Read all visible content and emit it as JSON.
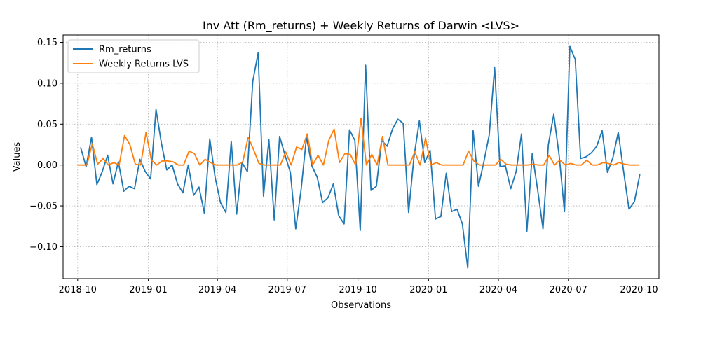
{
  "chart_data": {
    "type": "line",
    "title": "Inv Att (Rm_returns) + Weekly Returns of Darwin <LVS>",
    "xlabel": "Observations",
    "ylabel": "Values",
    "xlim": [
      "2018-09-12",
      "2020-10-27"
    ],
    "ylim": [
      -0.139,
      0.159
    ],
    "x_ticks": [
      {
        "date": "2018-10-01",
        "label": "2018-10"
      },
      {
        "date": "2019-01-01",
        "label": "2019-01"
      },
      {
        "date": "2019-04-01",
        "label": "2019-04"
      },
      {
        "date": "2019-07-01",
        "label": "2019-07"
      },
      {
        "date": "2019-10-01",
        "label": "2019-10"
      },
      {
        "date": "2020-01-01",
        "label": "2020-01"
      },
      {
        "date": "2020-04-01",
        "label": "2020-04"
      },
      {
        "date": "2020-07-01",
        "label": "2020-07"
      },
      {
        "date": "2020-10-01",
        "label": "2020-10"
      }
    ],
    "y_ticks": [
      {
        "value": -0.1,
        "label": "−0.10"
      },
      {
        "value": -0.05,
        "label": "−0.05"
      },
      {
        "value": 0.0,
        "label": "0.00"
      },
      {
        "value": 0.05,
        "label": "0.05"
      },
      {
        "value": 0.1,
        "label": "0.10"
      },
      {
        "value": 0.15,
        "label": "0.15"
      }
    ],
    "grid": true,
    "legend_position": "top-left",
    "series": [
      {
        "name": "Rm_returns",
        "color": "#1f77b4",
        "points": [
          [
            "2018-10-05",
            0.021
          ],
          [
            "2018-10-12",
            -0.002
          ],
          [
            "2018-10-19",
            0.034
          ],
          [
            "2018-10-26",
            -0.024
          ],
          [
            "2018-11-02",
            -0.008
          ],
          [
            "2018-11-09",
            0.012
          ],
          [
            "2018-11-16",
            -0.023
          ],
          [
            "2018-11-23",
            0.004
          ],
          [
            "2018-11-30",
            -0.032
          ],
          [
            "2018-12-07",
            -0.026
          ],
          [
            "2018-12-14",
            -0.029
          ],
          [
            "2018-12-21",
            0.007
          ],
          [
            "2018-12-28",
            -0.008
          ],
          [
            "2019-01-04",
            -0.017
          ],
          [
            "2019-01-11",
            0.068
          ],
          [
            "2019-01-18",
            0.027
          ],
          [
            "2019-01-25",
            -0.006
          ],
          [
            "2019-02-01",
            0.0
          ],
          [
            "2019-02-08",
            -0.023
          ],
          [
            "2019-02-15",
            -0.034
          ],
          [
            "2019-02-22",
            0.0
          ],
          [
            "2019-03-01",
            -0.037
          ],
          [
            "2019-03-08",
            -0.027
          ],
          [
            "2019-03-15",
            -0.059
          ],
          [
            "2019-03-22",
            0.032
          ],
          [
            "2019-03-29",
            -0.015
          ],
          [
            "2019-04-05",
            -0.046
          ],
          [
            "2019-04-12",
            -0.058
          ],
          [
            "2019-04-19",
            0.029
          ],
          [
            "2019-04-26",
            -0.06
          ],
          [
            "2019-05-03",
            0.003
          ],
          [
            "2019-05-10",
            -0.008
          ],
          [
            "2019-05-17",
            0.102
          ],
          [
            "2019-05-24",
            0.137
          ],
          [
            "2019-05-31",
            -0.038
          ],
          [
            "2019-06-07",
            0.031
          ],
          [
            "2019-06-14",
            -0.067
          ],
          [
            "2019-06-21",
            0.035
          ],
          [
            "2019-06-28",
            0.012
          ],
          [
            "2019-07-05",
            -0.009
          ],
          [
            "2019-07-12",
            -0.078
          ],
          [
            "2019-07-19",
            -0.03
          ],
          [
            "2019-07-26",
            0.034
          ],
          [
            "2019-08-02",
            -0.001
          ],
          [
            "2019-08-09",
            -0.015
          ],
          [
            "2019-08-16",
            -0.046
          ],
          [
            "2019-08-23",
            -0.04
          ],
          [
            "2019-08-30",
            -0.023
          ],
          [
            "2019-09-06",
            -0.062
          ],
          [
            "2019-09-13",
            -0.072
          ],
          [
            "2019-09-20",
            0.043
          ],
          [
            "2019-09-27",
            0.03
          ],
          [
            "2019-10-04",
            -0.08
          ],
          [
            "2019-10-11",
            0.122
          ],
          [
            "2019-10-18",
            -0.031
          ],
          [
            "2019-10-25",
            -0.026
          ],
          [
            "2019-11-01",
            0.03
          ],
          [
            "2019-11-08",
            0.023
          ],
          [
            "2019-11-15",
            0.044
          ],
          [
            "2019-11-22",
            0.056
          ],
          [
            "2019-11-29",
            0.051
          ],
          [
            "2019-12-06",
            -0.058
          ],
          [
            "2019-12-13",
            0.01
          ],
          [
            "2019-12-20",
            0.054
          ],
          [
            "2019-12-27",
            0.003
          ],
          [
            "2020-01-03",
            0.018
          ],
          [
            "2020-01-10",
            -0.066
          ],
          [
            "2020-01-17",
            -0.063
          ],
          [
            "2020-01-24",
            -0.01
          ],
          [
            "2020-01-31",
            -0.057
          ],
          [
            "2020-02-07",
            -0.054
          ],
          [
            "2020-02-14",
            -0.072
          ],
          [
            "2020-02-21",
            -0.126
          ],
          [
            "2020-02-28",
            0.042
          ],
          [
            "2020-03-06",
            -0.026
          ],
          [
            "2020-03-13",
            0.004
          ],
          [
            "2020-03-20",
            0.037
          ],
          [
            "2020-03-27",
            0.119
          ],
          [
            "2020-04-03",
            -0.002
          ],
          [
            "2020-04-10",
            -0.001
          ],
          [
            "2020-04-17",
            -0.029
          ],
          [
            "2020-04-24",
            -0.008
          ],
          [
            "2020-05-01",
            0.038
          ],
          [
            "2020-05-08",
            -0.081
          ],
          [
            "2020-05-15",
            0.014
          ],
          [
            "2020-05-22",
            -0.03
          ],
          [
            "2020-05-29",
            -0.078
          ],
          [
            "2020-06-05",
            0.025
          ],
          [
            "2020-06-12",
            0.062
          ],
          [
            "2020-06-19",
            0.012
          ],
          [
            "2020-06-26",
            -0.057
          ],
          [
            "2020-07-03",
            0.145
          ],
          [
            "2020-07-10",
            0.129
          ],
          [
            "2020-07-17",
            0.008
          ],
          [
            "2020-07-24",
            0.01
          ],
          [
            "2020-07-31",
            0.015
          ],
          [
            "2020-08-07",
            0.023
          ],
          [
            "2020-08-14",
            0.042
          ],
          [
            "2020-08-21",
            -0.009
          ],
          [
            "2020-08-28",
            0.009
          ],
          [
            "2020-09-04",
            0.04
          ],
          [
            "2020-09-11",
            -0.008
          ],
          [
            "2020-09-18",
            -0.054
          ],
          [
            "2020-09-25",
            -0.045
          ],
          [
            "2020-10-02",
            -0.012
          ]
        ]
      },
      {
        "name": "Weekly Returns LVS",
        "color": "#ff7f0e",
        "points": [
          [
            "2018-10-01",
            0.0
          ],
          [
            "2018-10-13",
            0.0
          ],
          [
            "2018-10-20",
            0.026
          ],
          [
            "2018-10-27",
            0.001
          ],
          [
            "2018-11-03",
            0.008
          ],
          [
            "2018-11-10",
            0.0
          ],
          [
            "2018-11-17",
            0.003
          ],
          [
            "2018-11-24",
            0.0
          ],
          [
            "2018-12-01",
            0.036
          ],
          [
            "2018-12-08",
            0.025
          ],
          [
            "2018-12-15",
            0.001
          ],
          [
            "2018-12-22",
            0.0
          ],
          [
            "2018-12-29",
            0.04
          ],
          [
            "2019-01-05",
            0.006
          ],
          [
            "2019-01-12",
            0.0
          ],
          [
            "2019-01-19",
            0.005
          ],
          [
            "2019-01-26",
            0.005
          ],
          [
            "2019-02-02",
            0.004
          ],
          [
            "2019-02-09",
            0.0
          ],
          [
            "2019-02-16",
            0.0
          ],
          [
            "2019-02-23",
            0.017
          ],
          [
            "2019-03-02",
            0.014
          ],
          [
            "2019-03-09",
            0.0
          ],
          [
            "2019-03-16",
            0.007
          ],
          [
            "2019-03-23",
            0.003
          ],
          [
            "2019-03-30",
            0.0
          ],
          [
            "2019-04-06",
            0.0
          ],
          [
            "2019-04-13",
            0.0
          ],
          [
            "2019-04-20",
            0.0
          ],
          [
            "2019-04-27",
            0.0
          ],
          [
            "2019-05-04",
            0.004
          ],
          [
            "2019-05-11",
            0.034
          ],
          [
            "2019-05-18",
            0.019
          ],
          [
            "2019-05-25",
            0.002
          ],
          [
            "2019-06-01",
            0.0
          ],
          [
            "2019-06-08",
            0.0
          ],
          [
            "2019-06-15",
            0.0
          ],
          [
            "2019-06-22",
            0.0
          ],
          [
            "2019-06-29",
            0.016
          ],
          [
            "2019-07-06",
            0.0
          ],
          [
            "2019-07-13",
            0.022
          ],
          [
            "2019-07-20",
            0.019
          ],
          [
            "2019-07-27",
            0.038
          ],
          [
            "2019-08-03",
            0.0
          ],
          [
            "2019-08-10",
            0.012
          ],
          [
            "2019-08-17",
            0.0
          ],
          [
            "2019-08-24",
            0.03
          ],
          [
            "2019-08-31",
            0.044
          ],
          [
            "2019-09-07",
            0.003
          ],
          [
            "2019-09-14",
            0.014
          ],
          [
            "2019-09-21",
            0.013
          ],
          [
            "2019-09-28",
            0.0
          ],
          [
            "2019-10-05",
            0.057
          ],
          [
            "2019-10-12",
            0.0
          ],
          [
            "2019-10-19",
            0.013
          ],
          [
            "2019-10-26",
            0.0
          ],
          [
            "2019-11-02",
            0.035
          ],
          [
            "2019-11-09",
            0.0
          ],
          [
            "2019-11-16",
            0.0
          ],
          [
            "2019-11-23",
            0.0
          ],
          [
            "2019-11-30",
            0.0
          ],
          [
            "2019-12-07",
            0.0
          ],
          [
            "2019-12-14",
            0.016
          ],
          [
            "2019-12-21",
            0.0
          ],
          [
            "2019-12-28",
            0.033
          ],
          [
            "2020-01-04",
            0.0
          ],
          [
            "2020-01-11",
            0.003
          ],
          [
            "2020-01-18",
            0.0
          ],
          [
            "2020-01-25",
            0.0
          ],
          [
            "2020-02-01",
            0.0
          ],
          [
            "2020-02-08",
            0.0
          ],
          [
            "2020-02-15",
            0.0
          ],
          [
            "2020-02-22",
            0.017
          ],
          [
            "2020-02-29",
            0.005
          ],
          [
            "2020-03-07",
            0.0
          ],
          [
            "2020-03-14",
            0.0
          ],
          [
            "2020-03-21",
            0.0
          ],
          [
            "2020-03-28",
            0.0
          ],
          [
            "2020-04-04",
            0.007
          ],
          [
            "2020-04-11",
            0.001
          ],
          [
            "2020-04-18",
            0.0
          ],
          [
            "2020-04-25",
            0.0
          ],
          [
            "2020-05-02",
            0.0
          ],
          [
            "2020-05-09",
            0.0
          ],
          [
            "2020-05-16",
            0.001
          ],
          [
            "2020-05-23",
            0.0
          ],
          [
            "2020-05-30",
            0.0
          ],
          [
            "2020-06-06",
            0.012
          ],
          [
            "2020-06-13",
            0.0
          ],
          [
            "2020-06-20",
            0.006
          ],
          [
            "2020-06-27",
            0.0
          ],
          [
            "2020-07-04",
            0.002
          ],
          [
            "2020-07-11",
            0.0
          ],
          [
            "2020-07-18",
            0.0
          ],
          [
            "2020-07-25",
            0.006
          ],
          [
            "2020-08-01",
            0.0
          ],
          [
            "2020-08-08",
            0.0
          ],
          [
            "2020-08-15",
            0.003
          ],
          [
            "2020-08-22",
            0.002
          ],
          [
            "2020-08-29",
            0.0
          ],
          [
            "2020-09-05",
            0.003
          ],
          [
            "2020-09-12",
            0.001
          ],
          [
            "2020-09-19",
            0.0
          ],
          [
            "2020-09-26",
            0.0
          ],
          [
            "2020-10-01",
            0.0
          ]
        ]
      }
    ]
  }
}
